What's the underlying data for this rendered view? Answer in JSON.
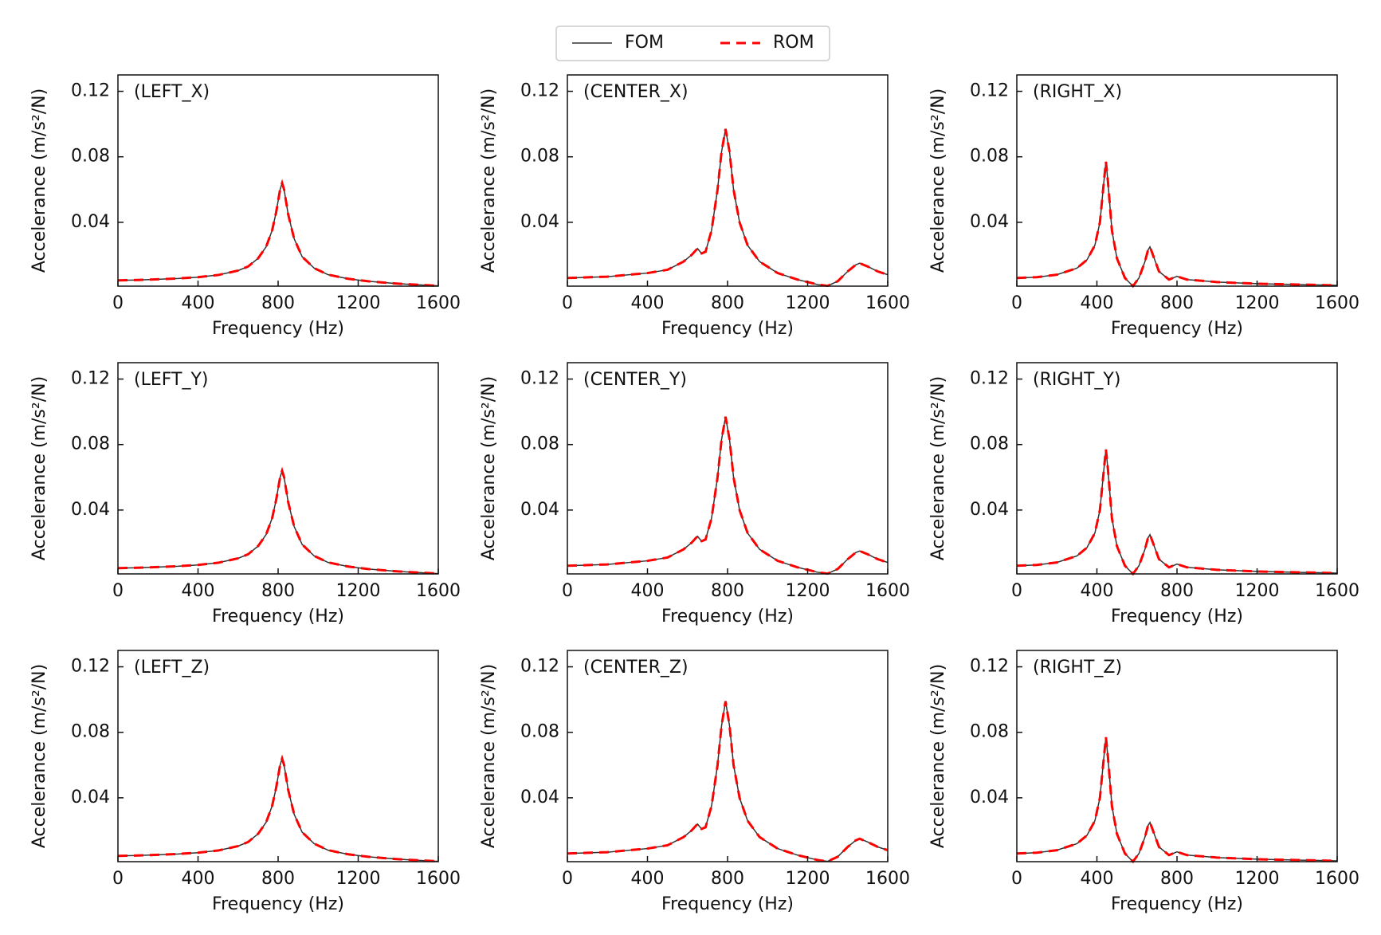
{
  "chart_data": [
    {
      "type": "line",
      "annotation": "(LEFT_X)",
      "xlabel": "Frequency (Hz)",
      "ylabel": "Accelerance (m/s²/N)",
      "xlim": [
        0,
        1600
      ],
      "ylim": [
        0.001,
        0.13
      ],
      "xticks": [
        0,
        400,
        800,
        1200,
        1600
      ],
      "yticks": [
        0.04,
        0.08,
        0.12
      ],
      "x": [
        0,
        100,
        200,
        300,
        400,
        500,
        600,
        650,
        700,
        740,
        770,
        790,
        810,
        820,
        830,
        850,
        880,
        920,
        980,
        1050,
        1150,
        1250,
        1400,
        1600
      ],
      "series": [
        {
          "name": "FOM",
          "color": "#333333",
          "linestyle": "solid",
          "values": [
            0.0045,
            0.0048,
            0.0052,
            0.0057,
            0.0065,
            0.0078,
            0.0105,
            0.013,
            0.018,
            0.025,
            0.035,
            0.046,
            0.06,
            0.064,
            0.06,
            0.045,
            0.03,
            0.019,
            0.012,
            0.008,
            0.0055,
            0.004,
            0.0025,
            0.0012
          ]
        },
        {
          "name": "ROM",
          "color": "#ff0000",
          "linestyle": "dashed",
          "values": [
            0.0045,
            0.0048,
            0.0052,
            0.0057,
            0.0065,
            0.0078,
            0.0105,
            0.013,
            0.018,
            0.025,
            0.035,
            0.046,
            0.06,
            0.064,
            0.06,
            0.045,
            0.03,
            0.019,
            0.012,
            0.008,
            0.0055,
            0.004,
            0.0025,
            0.0012
          ]
        }
      ]
    },
    {
      "type": "line",
      "annotation": "(CENTER_X)",
      "xlabel": "Frequency (Hz)",
      "ylabel": "Accelerance (m/s²/N)",
      "xlim": [
        0,
        1600
      ],
      "ylim": [
        0.001,
        0.13
      ],
      "xticks": [
        0,
        400,
        800,
        1200,
        1600
      ],
      "yticks": [
        0.04,
        0.08,
        0.12
      ],
      "x": [
        0,
        200,
        400,
        500,
        580,
        620,
        650,
        670,
        690,
        720,
        750,
        770,
        790,
        810,
        830,
        860,
        900,
        960,
        1050,
        1150,
        1250,
        1300,
        1350,
        1400,
        1440,
        1460,
        1500,
        1550,
        1600
      ],
      "series": [
        {
          "name": "FOM",
          "color": "#333333",
          "linestyle": "solid",
          "values": [
            0.006,
            0.0068,
            0.009,
            0.011,
            0.016,
            0.02,
            0.024,
            0.021,
            0.022,
            0.035,
            0.06,
            0.083,
            0.097,
            0.083,
            0.06,
            0.04,
            0.026,
            0.016,
            0.009,
            0.005,
            0.002,
            0.0012,
            0.004,
            0.01,
            0.014,
            0.015,
            0.013,
            0.01,
            0.008
          ]
        },
        {
          "name": "ROM",
          "color": "#ff0000",
          "linestyle": "dashed",
          "values": [
            0.006,
            0.0068,
            0.009,
            0.011,
            0.016,
            0.02,
            0.024,
            0.021,
            0.022,
            0.035,
            0.06,
            0.083,
            0.097,
            0.083,
            0.06,
            0.04,
            0.026,
            0.016,
            0.009,
            0.005,
            0.002,
            0.0012,
            0.004,
            0.01,
            0.014,
            0.015,
            0.013,
            0.01,
            0.008
          ]
        }
      ]
    },
    {
      "type": "line",
      "annotation": "(RIGHT_X)",
      "xlabel": "Frequency (Hz)",
      "ylabel": "Accelerance (m/s²/N)",
      "xlim": [
        0,
        1600
      ],
      "ylim": [
        0.001,
        0.13
      ],
      "xticks": [
        0,
        400,
        800,
        1200,
        1600
      ],
      "yticks": [
        0.04,
        0.08,
        0.12
      ],
      "x": [
        0,
        100,
        200,
        300,
        350,
        390,
        415,
        435,
        445,
        455,
        475,
        500,
        540,
        580,
        610,
        640,
        655,
        665,
        680,
        710,
        760,
        800,
        850,
        1000,
        1200,
        1400,
        1600
      ],
      "series": [
        {
          "name": "FOM",
          "color": "#333333",
          "linestyle": "solid",
          "values": [
            0.006,
            0.0065,
            0.008,
            0.012,
            0.017,
            0.026,
            0.04,
            0.065,
            0.077,
            0.065,
            0.035,
            0.018,
            0.006,
            0.001,
            0.006,
            0.016,
            0.023,
            0.025,
            0.02,
            0.01,
            0.005,
            0.007,
            0.005,
            0.0035,
            0.0025,
            0.002,
            0.0015
          ]
        },
        {
          "name": "ROM",
          "color": "#ff0000",
          "linestyle": "dashed",
          "values": [
            0.006,
            0.0065,
            0.008,
            0.012,
            0.017,
            0.026,
            0.04,
            0.065,
            0.077,
            0.065,
            0.035,
            0.018,
            0.006,
            0.001,
            0.006,
            0.016,
            0.023,
            0.025,
            0.02,
            0.01,
            0.005,
            0.007,
            0.005,
            0.0035,
            0.0025,
            0.002,
            0.0015
          ]
        }
      ]
    },
    {
      "type": "line",
      "annotation": "(LEFT_Y)",
      "xlabel": "Frequency (Hz)",
      "ylabel": "Accelerance (m/s²/N)",
      "xlim": [
        0,
        1600
      ],
      "ylim": [
        0.001,
        0.13
      ],
      "xticks": [
        0,
        400,
        800,
        1200,
        1600
      ],
      "yticks": [
        0.04,
        0.08,
        0.12
      ],
      "x": [
        0,
        100,
        200,
        300,
        400,
        500,
        600,
        650,
        700,
        740,
        770,
        790,
        810,
        820,
        830,
        850,
        880,
        920,
        980,
        1050,
        1150,
        1250,
        1400,
        1600
      ],
      "series": [
        {
          "name": "FOM",
          "color": "#333333",
          "linestyle": "solid",
          "values": [
            0.0045,
            0.0048,
            0.0052,
            0.0057,
            0.0065,
            0.0078,
            0.0105,
            0.013,
            0.018,
            0.025,
            0.035,
            0.046,
            0.06,
            0.064,
            0.06,
            0.045,
            0.03,
            0.019,
            0.012,
            0.008,
            0.0055,
            0.004,
            0.0025,
            0.0012
          ]
        },
        {
          "name": "ROM",
          "color": "#ff0000",
          "linestyle": "dashed",
          "values": [
            0.0045,
            0.0048,
            0.0052,
            0.0057,
            0.0065,
            0.0078,
            0.0105,
            0.013,
            0.018,
            0.025,
            0.035,
            0.046,
            0.06,
            0.064,
            0.06,
            0.045,
            0.03,
            0.019,
            0.012,
            0.008,
            0.0055,
            0.004,
            0.0025,
            0.0012
          ]
        }
      ]
    },
    {
      "type": "line",
      "annotation": "(CENTER_Y)",
      "xlabel": "Frequency (Hz)",
      "ylabel": "Accelerance (m/s²/N)",
      "xlim": [
        0,
        1600
      ],
      "ylim": [
        0.001,
        0.13
      ],
      "xticks": [
        0,
        400,
        800,
        1200,
        1600
      ],
      "yticks": [
        0.04,
        0.08,
        0.12
      ],
      "x": [
        0,
        200,
        400,
        500,
        580,
        620,
        650,
        670,
        690,
        720,
        750,
        770,
        790,
        810,
        830,
        860,
        900,
        960,
        1050,
        1150,
        1250,
        1300,
        1350,
        1400,
        1440,
        1460,
        1500,
        1550,
        1600
      ],
      "series": [
        {
          "name": "FOM",
          "color": "#333333",
          "linestyle": "solid",
          "values": [
            0.006,
            0.0068,
            0.009,
            0.011,
            0.016,
            0.02,
            0.024,
            0.021,
            0.022,
            0.035,
            0.06,
            0.083,
            0.097,
            0.083,
            0.06,
            0.04,
            0.026,
            0.016,
            0.009,
            0.005,
            0.002,
            0.0012,
            0.004,
            0.01,
            0.014,
            0.015,
            0.013,
            0.01,
            0.008
          ]
        },
        {
          "name": "ROM",
          "color": "#ff0000",
          "linestyle": "dashed",
          "values": [
            0.006,
            0.0068,
            0.009,
            0.011,
            0.016,
            0.02,
            0.024,
            0.021,
            0.022,
            0.035,
            0.06,
            0.083,
            0.097,
            0.083,
            0.06,
            0.04,
            0.026,
            0.016,
            0.009,
            0.005,
            0.002,
            0.0012,
            0.004,
            0.01,
            0.014,
            0.015,
            0.013,
            0.01,
            0.008
          ]
        }
      ]
    },
    {
      "type": "line",
      "annotation": "(RIGHT_Y)",
      "xlabel": "Frequency (Hz)",
      "ylabel": "Accelerance (m/s²/N)",
      "xlim": [
        0,
        1600
      ],
      "ylim": [
        0.001,
        0.13
      ],
      "xticks": [
        0,
        400,
        800,
        1200,
        1600
      ],
      "yticks": [
        0.04,
        0.08,
        0.12
      ],
      "x": [
        0,
        100,
        200,
        300,
        350,
        390,
        415,
        435,
        445,
        455,
        475,
        500,
        540,
        580,
        610,
        640,
        655,
        665,
        680,
        710,
        760,
        800,
        850,
        1000,
        1200,
        1400,
        1600
      ],
      "series": [
        {
          "name": "FOM",
          "color": "#333333",
          "linestyle": "solid",
          "values": [
            0.006,
            0.0065,
            0.008,
            0.012,
            0.017,
            0.026,
            0.04,
            0.065,
            0.077,
            0.065,
            0.035,
            0.018,
            0.006,
            0.001,
            0.006,
            0.016,
            0.023,
            0.025,
            0.02,
            0.01,
            0.005,
            0.007,
            0.005,
            0.0035,
            0.0025,
            0.002,
            0.0015
          ]
        },
        {
          "name": "ROM",
          "color": "#ff0000",
          "linestyle": "dashed",
          "values": [
            0.006,
            0.0065,
            0.008,
            0.012,
            0.017,
            0.026,
            0.04,
            0.065,
            0.077,
            0.065,
            0.035,
            0.018,
            0.006,
            0.001,
            0.006,
            0.016,
            0.023,
            0.025,
            0.02,
            0.01,
            0.005,
            0.007,
            0.005,
            0.0035,
            0.0025,
            0.002,
            0.0015
          ]
        }
      ]
    },
    {
      "type": "line",
      "annotation": "(LEFT_Z)",
      "xlabel": "Frequency (Hz)",
      "ylabel": "Accelerance (m/s²/N)",
      "xlim": [
        0,
        1600
      ],
      "ylim": [
        0.001,
        0.13
      ],
      "xticks": [
        0,
        400,
        800,
        1200,
        1600
      ],
      "yticks": [
        0.04,
        0.08,
        0.12
      ],
      "x": [
        0,
        100,
        200,
        300,
        400,
        500,
        600,
        650,
        700,
        740,
        770,
        790,
        810,
        820,
        830,
        850,
        880,
        920,
        980,
        1050,
        1150,
        1250,
        1400,
        1600
      ],
      "series": [
        {
          "name": "FOM",
          "color": "#333333",
          "linestyle": "solid",
          "values": [
            0.0045,
            0.0048,
            0.0052,
            0.0057,
            0.0065,
            0.0078,
            0.0105,
            0.013,
            0.018,
            0.025,
            0.035,
            0.046,
            0.06,
            0.064,
            0.06,
            0.045,
            0.03,
            0.019,
            0.012,
            0.008,
            0.0055,
            0.004,
            0.0025,
            0.0012
          ]
        },
        {
          "name": "ROM",
          "color": "#ff0000",
          "linestyle": "dashed",
          "values": [
            0.0045,
            0.0048,
            0.0052,
            0.0057,
            0.0065,
            0.0078,
            0.0105,
            0.013,
            0.018,
            0.025,
            0.035,
            0.046,
            0.06,
            0.064,
            0.06,
            0.045,
            0.03,
            0.019,
            0.012,
            0.008,
            0.0055,
            0.004,
            0.0025,
            0.0012
          ]
        }
      ]
    },
    {
      "type": "line",
      "annotation": "(CENTER_Z)",
      "xlabel": "Frequency (Hz)",
      "ylabel": "Accelerance (m/s²/N)",
      "xlim": [
        0,
        1600
      ],
      "ylim": [
        0.001,
        0.13
      ],
      "xticks": [
        0,
        400,
        800,
        1200,
        1600
      ],
      "yticks": [
        0.04,
        0.08,
        0.12
      ],
      "x": [
        0,
        200,
        400,
        500,
        580,
        620,
        650,
        670,
        690,
        720,
        750,
        770,
        790,
        810,
        830,
        860,
        900,
        960,
        1050,
        1150,
        1250,
        1300,
        1350,
        1400,
        1440,
        1460,
        1500,
        1550,
        1600
      ],
      "series": [
        {
          "name": "FOM",
          "color": "#333333",
          "linestyle": "solid",
          "values": [
            0.006,
            0.0068,
            0.009,
            0.011,
            0.016,
            0.02,
            0.024,
            0.021,
            0.022,
            0.035,
            0.06,
            0.084,
            0.099,
            0.084,
            0.06,
            0.04,
            0.026,
            0.016,
            0.009,
            0.005,
            0.002,
            0.0012,
            0.004,
            0.01,
            0.014,
            0.015,
            0.013,
            0.01,
            0.008
          ]
        },
        {
          "name": "ROM",
          "color": "#ff0000",
          "linestyle": "dashed",
          "values": [
            0.006,
            0.0068,
            0.009,
            0.011,
            0.016,
            0.02,
            0.024,
            0.021,
            0.022,
            0.035,
            0.06,
            0.084,
            0.099,
            0.084,
            0.06,
            0.04,
            0.026,
            0.016,
            0.009,
            0.005,
            0.002,
            0.0012,
            0.004,
            0.01,
            0.014,
            0.015,
            0.013,
            0.01,
            0.008
          ]
        }
      ]
    },
    {
      "type": "line",
      "annotation": "(RIGHT_Z)",
      "xlabel": "Frequency (Hz)",
      "ylabel": "Accelerance (m/s²/N)",
      "xlim": [
        0,
        1600
      ],
      "ylim": [
        0.001,
        0.13
      ],
      "xticks": [
        0,
        400,
        800,
        1200,
        1600
      ],
      "yticks": [
        0.04,
        0.08,
        0.12
      ],
      "x": [
        0,
        100,
        200,
        300,
        350,
        390,
        415,
        435,
        445,
        455,
        475,
        500,
        540,
        580,
        610,
        640,
        655,
        665,
        680,
        710,
        760,
        800,
        850,
        1000,
        1200,
        1400,
        1600
      ],
      "series": [
        {
          "name": "FOM",
          "color": "#333333",
          "linestyle": "solid",
          "values": [
            0.006,
            0.0065,
            0.008,
            0.012,
            0.017,
            0.026,
            0.04,
            0.065,
            0.077,
            0.065,
            0.035,
            0.018,
            0.006,
            0.001,
            0.006,
            0.016,
            0.023,
            0.025,
            0.02,
            0.01,
            0.005,
            0.007,
            0.005,
            0.0035,
            0.0025,
            0.002,
            0.0015
          ]
        },
        {
          "name": "ROM",
          "color": "#ff0000",
          "linestyle": "dashed",
          "values": [
            0.006,
            0.0065,
            0.008,
            0.012,
            0.017,
            0.026,
            0.04,
            0.065,
            0.077,
            0.065,
            0.035,
            0.018,
            0.006,
            0.001,
            0.006,
            0.016,
            0.023,
            0.025,
            0.02,
            0.01,
            0.005,
            0.007,
            0.005,
            0.0035,
            0.0025,
            0.002,
            0.0015
          ]
        }
      ]
    }
  ]
}
